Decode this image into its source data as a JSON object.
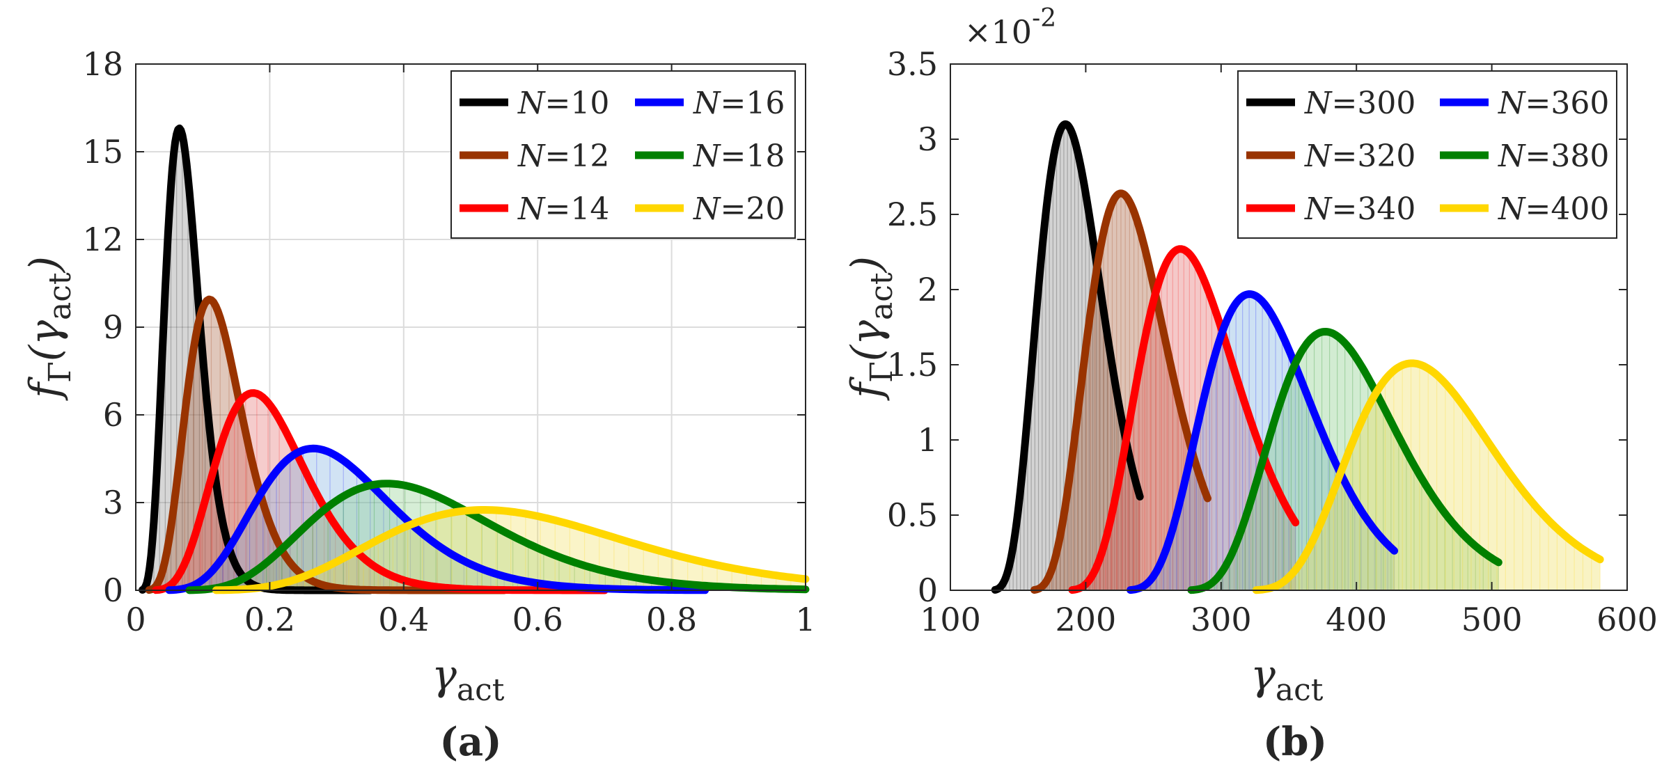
{
  "chart_data": [
    {
      "type": "line",
      "panel": "(a)",
      "xlabel": "γ",
      "xlabel_sub": "act",
      "ylabel": "f",
      "ylabel_sub": "Γ",
      "ylabel_arg": "(γ",
      "ylabel_arg_sub": "act",
      "ylabel_close": ")",
      "xlim": [
        0,
        1
      ],
      "ylim": [
        0,
        18
      ],
      "xticks": [
        0,
        0.2,
        0.4,
        0.6,
        0.8,
        1
      ],
      "xtick_labels": [
        "0",
        "0.2",
        "0.4",
        "0.6",
        "0.8",
        "1"
      ],
      "yticks": [
        0,
        3,
        6,
        9,
        12,
        15,
        18
      ],
      "ytick_labels": [
        "0",
        "3",
        "6",
        "9",
        "12",
        "15",
        "18"
      ],
      "grid": true,
      "legend_position": "top-right",
      "series": [
        {
          "name": "N=10",
          "label_n": "N",
          "label_v": "=10",
          "peak_x": 0.065,
          "peak_y": 15.8,
          "x_range": [
            0.01,
            0.35
          ],
          "color": "#000000",
          "fill": "#808080"
        },
        {
          "name": "N=12",
          "label_n": "N",
          "label_v": "=12",
          "peak_x": 0.11,
          "peak_y": 9.95,
          "x_range": [
            0.02,
            0.55
          ],
          "color": "#993300",
          "fill": "#a0522d"
        },
        {
          "name": "N=14",
          "label_n": "N",
          "label_v": "=14",
          "peak_x": 0.175,
          "peak_y": 6.75,
          "x_range": [
            0.03,
            0.7
          ],
          "color": "#ff0000",
          "fill": "#e06060"
        },
        {
          "name": "N=16",
          "label_n": "N",
          "label_v": "=16",
          "peak_x": 0.265,
          "peak_y": 4.85,
          "x_range": [
            0.05,
            0.85
          ],
          "color": "#0000ff",
          "fill": "#6fa8dc"
        },
        {
          "name": "N=18",
          "label_n": "N",
          "label_v": "=18",
          "peak_x": 0.375,
          "peak_y": 3.65,
          "x_range": [
            0.08,
            1.0
          ],
          "color": "#008000",
          "fill": "#7fc97f"
        },
        {
          "name": "N=20",
          "label_n": "N",
          "label_v": "=20",
          "peak_x": 0.52,
          "peak_y": 2.75,
          "x_range": [
            0.12,
            1.0
          ],
          "color": "#ffd700",
          "fill": "#eedd55"
        }
      ]
    },
    {
      "type": "line",
      "panel": "(b)",
      "xlabel": "γ",
      "xlabel_sub": "act",
      "ylabel": "f",
      "ylabel_sub": "Γ",
      "ylabel_arg": "(γ",
      "ylabel_arg_sub": "act",
      "ylabel_close": ")",
      "y_multiplier": "×10",
      "y_multiplier_exp": "-2",
      "xlim": [
        100,
        600
      ],
      "ylim": [
        0,
        3.5
      ],
      "xticks": [
        100,
        200,
        300,
        400,
        500,
        600
      ],
      "xtick_labels": [
        "100",
        "200",
        "300",
        "400",
        "500",
        "600"
      ],
      "yticks": [
        0,
        0.5,
        1,
        1.5,
        2,
        2.5,
        3,
        3.5
      ],
      "ytick_labels": [
        "0",
        "0.5",
        "1",
        "1.5",
        "2",
        "2.5",
        "3",
        "3.5"
      ],
      "grid": false,
      "legend_position": "top-right",
      "series": [
        {
          "name": "N=300",
          "label_n": "N",
          "label_v": "=300",
          "peak_x": 185,
          "peak_y": 3.1,
          "x_range": [
            133,
            240
          ],
          "color": "#000000",
          "fill": "#808080"
        },
        {
          "name": "N=320",
          "label_n": "N",
          "label_v": "=320",
          "peak_x": 226,
          "peak_y": 2.64,
          "x_range": [
            162,
            290
          ],
          "color": "#993300",
          "fill": "#a0522d"
        },
        {
          "name": "N=340",
          "label_n": "N",
          "label_v": "=340",
          "peak_x": 270,
          "peak_y": 2.27,
          "x_range": [
            190,
            355
          ],
          "color": "#ff0000",
          "fill": "#e06060"
        },
        {
          "name": "N=360",
          "label_n": "N",
          "label_v": "=360",
          "peak_x": 321,
          "peak_y": 1.97,
          "x_range": [
            233,
            428
          ],
          "color": "#0000ff",
          "fill": "#6fa8dc"
        },
        {
          "name": "N=380",
          "label_n": "N",
          "label_v": "=380",
          "peak_x": 377,
          "peak_y": 1.72,
          "x_range": [
            278,
            505
          ],
          "color": "#008000",
          "fill": "#7fc97f"
        },
        {
          "name": "N=400",
          "label_n": "N",
          "label_v": "=400",
          "peak_x": 441,
          "peak_y": 1.51,
          "x_range": [
            326,
            580
          ],
          "color": "#ffd700",
          "fill": "#eedd55"
        }
      ]
    }
  ]
}
